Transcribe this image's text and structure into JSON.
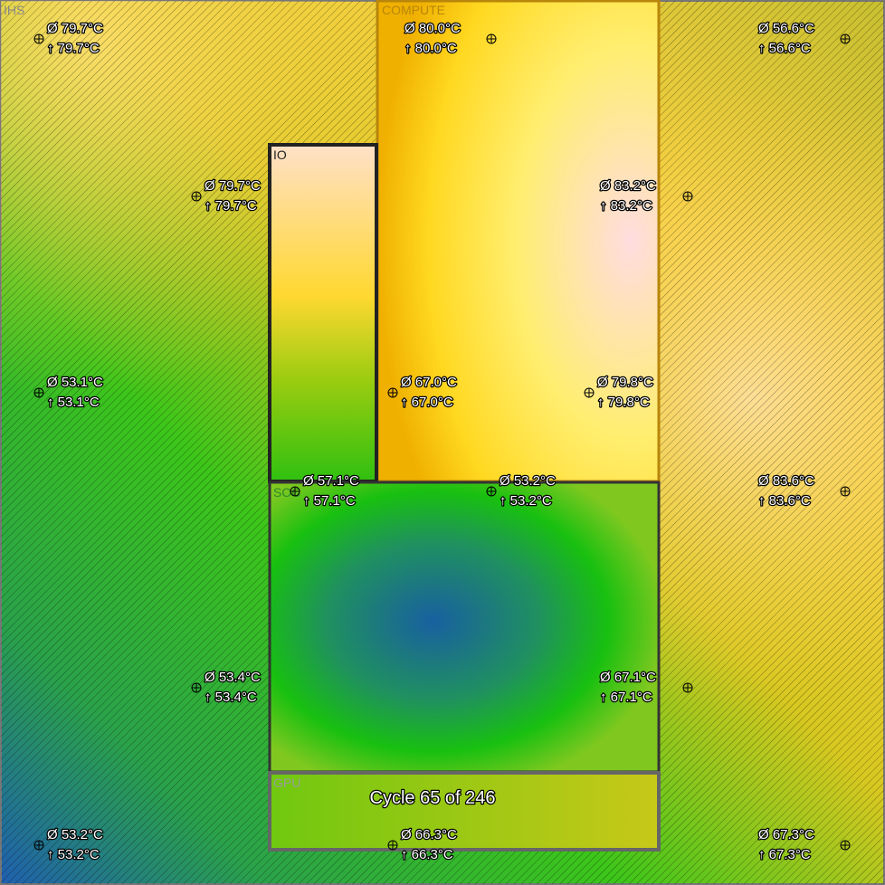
{
  "regions": [
    {
      "label": "IHS"
    },
    {
      "label": "COMPUTE"
    },
    {
      "label": "IO"
    },
    {
      "label": "SOC"
    },
    {
      "label": "GPU"
    }
  ],
  "sensors": [
    {
      "average": "Ø 79.7°C",
      "maximum": "↑ 79.7°C"
    },
    {
      "average": "Ø 80.0°C",
      "maximum": "↑ 80.0°C"
    },
    {
      "average": "Ø 56.6°C",
      "maximum": "↑ 56.6°C"
    },
    {
      "average": "Ø 79.7°C",
      "maximum": "↑ 79.7°C"
    },
    {
      "average": "Ø 83.2°C",
      "maximum": "↑ 83.2°C"
    },
    {
      "average": "Ø 53.1°C",
      "maximum": "↑ 53.1°C"
    },
    {
      "average": "Ø 67.0°C",
      "maximum": "↑ 67.0°C"
    },
    {
      "average": "Ø 79.8°C",
      "maximum": "↑ 79.8°C"
    },
    {
      "average": "Ø 57.1°C",
      "maximum": "↑ 57.1°C"
    },
    {
      "average": "Ø 53.2°C",
      "maximum": "↑ 53.2°C"
    },
    {
      "average": "Ø 83.6°C",
      "maximum": "↑ 83.6°C"
    },
    {
      "average": "Ø 53.4°C",
      "maximum": "↑ 53.4°C"
    },
    {
      "average": "Ø 67.1°C",
      "maximum": "↑ 67.1°C"
    },
    {
      "average": "Ø 53.2°C",
      "maximum": "↑ 53.2°C"
    },
    {
      "average": "Ø 66.3°C",
      "maximum": "↑ 66.3°C"
    },
    {
      "average": "Ø 67.3°C",
      "maximum": "↑ 67.3°C"
    }
  ],
  "status": "Cycle 65 of 246"
}
